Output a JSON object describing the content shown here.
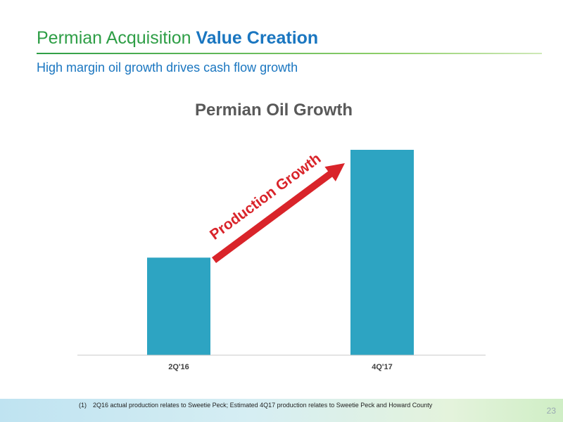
{
  "slide": {
    "title_main": "Permian Acquisition",
    "title_emphasis": "Value Creation",
    "subtitle": "High margin oil growth drives cash flow growth",
    "page_number": "23"
  },
  "footnote": {
    "number": "(1)",
    "text": "2Q16 actual production relates to Sweetie Peck; Estimated 4Q17 production relates to Sweetie Peck and Howard County"
  },
  "colors": {
    "bar": "#2da4c2",
    "arrow": "#d9242a",
    "axis": "#c8c8c8",
    "chart_title": "#595959"
  },
  "chart_data": {
    "type": "bar",
    "title": "Permian Oil Growth",
    "categories": [
      "2Q'16",
      "4Q'17"
    ],
    "values": [
      38,
      80
    ],
    "ylim": [
      0,
      100
    ],
    "xlabel": "",
    "ylabel": "",
    "grid": false,
    "annotation": "Production Growth"
  }
}
